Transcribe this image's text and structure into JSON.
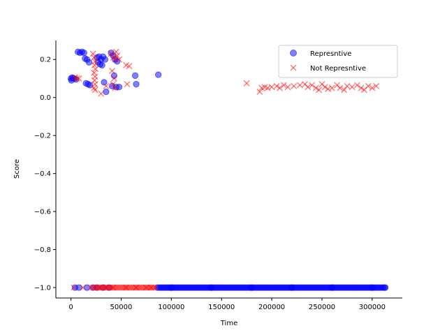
{
  "chart_data": {
    "type": "scatter",
    "title": "",
    "xlabel": "Time",
    "ylabel": "Score",
    "xlim": [
      -15000,
      330000
    ],
    "ylim": [
      -1.055,
      0.3
    ],
    "xticks": [
      0,
      50000,
      100000,
      150000,
      200000,
      250000,
      300000
    ],
    "xtick_labels": [
      "0",
      "50000",
      "100000",
      "150000",
      "200000",
      "250000",
      "300000"
    ],
    "yticks": [
      0.2,
      0.0,
      -0.2,
      -0.4,
      -0.6,
      -0.8,
      -1.0
    ],
    "ytick_labels": [
      "0.2",
      "0.0",
      "−0.2",
      "−0.4",
      "−0.6",
      "−0.8",
      "−1.0"
    ],
    "grid": false,
    "legend_position": "top-right",
    "series": [
      {
        "name": "Represntive",
        "marker": "circle",
        "color": "#0000ff",
        "alpha": 0.5,
        "points": [
          [
            0,
            0.1
          ],
          [
            500,
            0.09
          ],
          [
            1500,
            0.105
          ],
          [
            3000,
            0.1
          ],
          [
            5000,
            0.095
          ],
          [
            7000,
            0.24
          ],
          [
            9000,
            0.235
          ],
          [
            11000,
            0.24
          ],
          [
            13000,
            0.235
          ],
          [
            14000,
            0.205
          ],
          [
            16000,
            0.2
          ],
          [
            18000,
            0.185
          ],
          [
            15000,
            0.075
          ],
          [
            17000,
            0.07
          ],
          [
            19000,
            0.065
          ],
          [
            26000,
            0.21
          ],
          [
            28000,
            0.215
          ],
          [
            30000,
            0.2
          ],
          [
            32000,
            0.215
          ],
          [
            34000,
            0.2
          ],
          [
            27000,
            0.185
          ],
          [
            29000,
            0.175
          ],
          [
            31000,
            0.17
          ],
          [
            33000,
            0.08
          ],
          [
            35000,
            0.03
          ],
          [
            40000,
            0.235
          ],
          [
            42000,
            0.22
          ],
          [
            44000,
            0.2
          ],
          [
            46000,
            0.19
          ],
          [
            43000,
            0.115
          ],
          [
            41000,
            0.06
          ],
          [
            45000,
            0.055
          ],
          [
            48000,
            0.055
          ],
          [
            64000,
            0.115
          ],
          [
            65000,
            0.07
          ],
          [
            87000,
            0.12
          ],
          [
            4000,
            -1.0
          ],
          [
            8000,
            -1.0
          ],
          [
            16000,
            -1.0
          ],
          [
            22000,
            -1.0
          ],
          [
            26000,
            -1.0
          ],
          [
            32000,
            -1.0
          ],
          [
            38000,
            -1.0
          ],
          [
            100000,
            -1.0
          ],
          [
            140000,
            -1.0
          ],
          [
            180000,
            -1.0
          ],
          [
            220000,
            -1.0
          ],
          [
            260000,
            -1.0
          ],
          [
            300000,
            -1.0
          ],
          [
            313000,
            -1.0
          ]
        ],
        "dense_runs": [
          {
            "y": -1.0,
            "x_start": 86000,
            "x_end": 314000
          }
        ]
      },
      {
        "name": "Not Represntive",
        "marker": "x",
        "color": "#ff0000",
        "alpha": 0.5,
        "points": [
          [
            4000,
            0.105
          ],
          [
            6000,
            0.1
          ],
          [
            8000,
            0.1
          ],
          [
            22000,
            0.23
          ],
          [
            23000,
            0.21
          ],
          [
            24000,
            0.19
          ],
          [
            23500,
            0.17
          ],
          [
            24500,
            0.15
          ],
          [
            23000,
            0.13
          ],
          [
            24000,
            0.11
          ],
          [
            23500,
            0.09
          ],
          [
            24000,
            0.07
          ],
          [
            23000,
            0.05
          ],
          [
            24000,
            0.04
          ],
          [
            30000,
            0.02
          ],
          [
            35000,
            0.06
          ],
          [
            40000,
            0.23
          ],
          [
            42000,
            0.21
          ],
          [
            44000,
            0.2
          ],
          [
            45000,
            0.24
          ],
          [
            46000,
            0.22
          ],
          [
            41000,
            0.14
          ],
          [
            43000,
            0.1
          ],
          [
            42000,
            0.07
          ],
          [
            44000,
            0.05
          ],
          [
            48000,
            0.2
          ],
          [
            55000,
            0.17
          ],
          [
            58000,
            0.165
          ],
          [
            56000,
            0.07
          ],
          [
            175000,
            0.075
          ],
          [
            188000,
            0.03
          ],
          [
            190000,
            0.05
          ],
          [
            193000,
            0.055
          ],
          [
            196000,
            0.05
          ],
          [
            200000,
            0.055
          ],
          [
            205000,
            0.06
          ],
          [
            208000,
            0.05
          ],
          [
            212000,
            0.065
          ],
          [
            216000,
            0.055
          ],
          [
            222000,
            0.06
          ],
          [
            228000,
            0.065
          ],
          [
            233000,
            0.07
          ],
          [
            236000,
            0.055
          ],
          [
            240000,
            0.065
          ],
          [
            244000,
            0.05
          ],
          [
            247000,
            0.04
          ],
          [
            250000,
            0.07
          ],
          [
            253000,
            0.055
          ],
          [
            256000,
            0.045
          ],
          [
            260000,
            0.05
          ],
          [
            265000,
            0.065
          ],
          [
            268000,
            0.05
          ],
          [
            272000,
            0.04
          ],
          [
            275000,
            0.06
          ],
          [
            280000,
            0.055
          ],
          [
            285000,
            0.065
          ],
          [
            289000,
            0.05
          ],
          [
            292000,
            0.04
          ],
          [
            296000,
            0.06
          ],
          [
            300000,
            0.05
          ],
          [
            304000,
            0.06
          ],
          [
            3000,
            -1.0
          ],
          [
            12000,
            -1.0
          ],
          [
            20000,
            -1.0
          ],
          [
            28000,
            -1.0
          ],
          [
            35000,
            -1.0
          ],
          [
            42000,
            -1.0
          ],
          [
            55000,
            -1.0
          ],
          [
            65000,
            -1.0
          ],
          [
            75000,
            -1.0
          ],
          [
            80000,
            -1.0
          ],
          [
            84000,
            -1.0
          ]
        ],
        "dense_runs": [
          {
            "y": -1.0,
            "x_start": 22000,
            "x_end": 84000
          }
        ]
      }
    ]
  }
}
